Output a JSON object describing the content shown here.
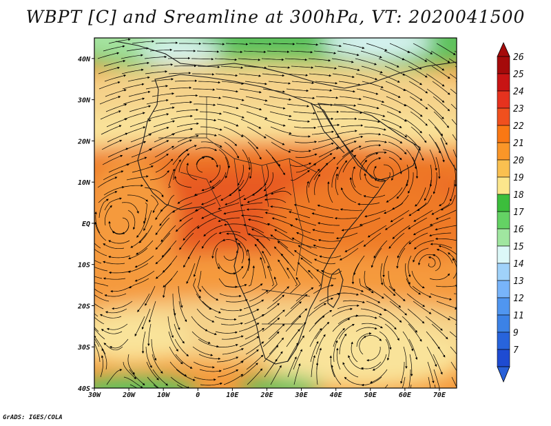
{
  "title": "WBPT [C] and Sreamline at 300hPa, VT: 2020041500",
  "credit": "GrADS: IGES/COLA",
  "map": {
    "lon_range": [
      -30,
      75
    ],
    "lat_range": [
      -40,
      45
    ],
    "lat_ticks": [
      {
        "value": 40,
        "label": "40N"
      },
      {
        "value": 30,
        "label": "30N"
      },
      {
        "value": 20,
        "label": "20N"
      },
      {
        "value": 10,
        "label": "10N"
      },
      {
        "value": 0,
        "label": "EQ"
      },
      {
        "value": -10,
        "label": "10S"
      },
      {
        "value": -20,
        "label": "20S"
      },
      {
        "value": -30,
        "label": "30S"
      },
      {
        "value": -40,
        "label": "40S"
      }
    ],
    "lon_ticks": [
      {
        "value": -30,
        "label": "30W"
      },
      {
        "value": -20,
        "label": "20W"
      },
      {
        "value": -10,
        "label": "10W"
      },
      {
        "value": 0,
        "label": "0"
      },
      {
        "value": 10,
        "label": "10E"
      },
      {
        "value": 20,
        "label": "20E"
      },
      {
        "value": 30,
        "label": "30E"
      },
      {
        "value": 40,
        "label": "40E"
      },
      {
        "value": 50,
        "label": "50E"
      },
      {
        "value": 60,
        "label": "60E"
      },
      {
        "value": 70,
        "label": "70E"
      }
    ]
  },
  "colorbar": {
    "levels": [
      {
        "label": "26",
        "color": "#a50a0a"
      },
      {
        "label": "25",
        "color": "#c81414"
      },
      {
        "label": "24",
        "color": "#e6321e"
      },
      {
        "label": "23",
        "color": "#f0501e"
      },
      {
        "label": "22",
        "color": "#fa7814"
      },
      {
        "label": "21",
        "color": "#fa9628"
      },
      {
        "label": "20",
        "color": "#fac050"
      },
      {
        "label": "19",
        "color": "#fce68c"
      },
      {
        "label": "18",
        "color": "#3cbe3c"
      },
      {
        "label": "17",
        "color": "#64d264"
      },
      {
        "label": "16",
        "color": "#a0e6a0"
      },
      {
        "label": "15",
        "color": "#dcf8f8"
      },
      {
        "label": "14",
        "color": "#a0d2fa"
      },
      {
        "label": "13",
        "color": "#78b4fa"
      },
      {
        "label": "12",
        "color": "#5096f0"
      },
      {
        "label": "11",
        "color": "#3c82e6"
      },
      {
        "label": "9",
        "color": "#2864dc"
      },
      {
        "label": "7",
        "color": "#1e4bd2"
      }
    ],
    "top_color": "#a50a0a",
    "bottom_color": "#2860d8"
  },
  "field_colors": {
    "green": "#5dc25d",
    "light_green": "#a6e3a0",
    "pale_cyan": "#d9f4f4",
    "yellow": "#f9e39a",
    "tan": "#f5d28a",
    "orange": "#f59a3c",
    "dark_orange": "#ef7a28",
    "red_orange": "#e85a22"
  }
}
